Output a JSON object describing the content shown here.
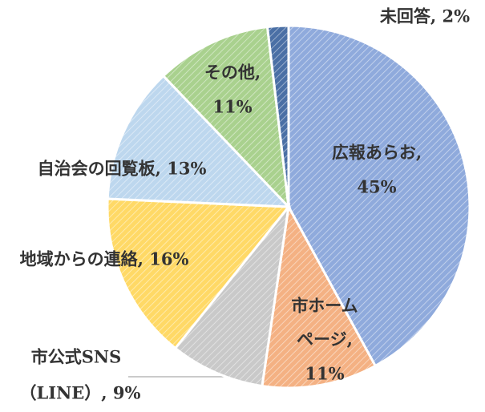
{
  "chart_data": {
    "type": "pie",
    "values": [
      45,
      11,
      9,
      16,
      13,
      11,
      2
    ],
    "labels": [
      [
        "広報あらお,",
        "45%"
      ],
      [
        "市ホーム",
        "ページ,",
        "11%"
      ],
      [
        "市公式SNS",
        "（LINE）, 9%"
      ],
      [
        "地域からの連絡, 16%"
      ],
      [
        "自治会の回覧板, 13%"
      ],
      [
        "その他,",
        "11%"
      ],
      [
        "未回答, 2%"
      ]
    ],
    "colors": [
      "#8faadc",
      "#f4b183",
      "#c9c9c9",
      "#ffd966",
      "#bdd7ee",
      "#a9d18e",
      "#4a6fa5"
    ],
    "hatched": true
  }
}
